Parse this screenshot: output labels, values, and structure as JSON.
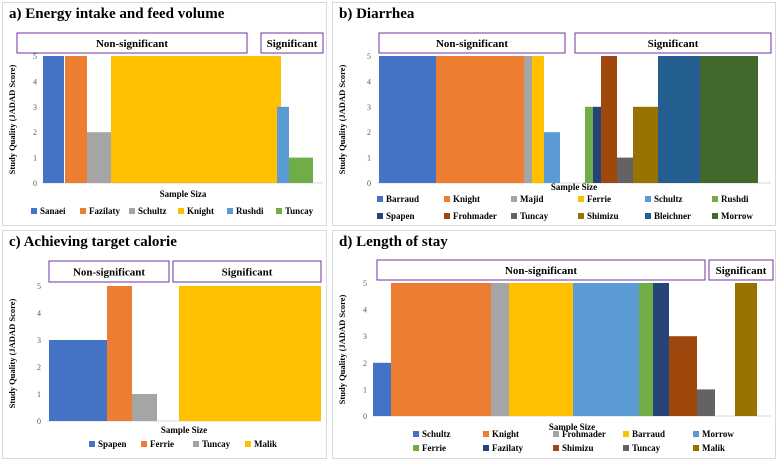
{
  "chart_data": [
    {
      "id": "a",
      "type": "bar",
      "title": "a) Energy intake and feed volume",
      "xlabel": "Sample Siza",
      "ylabel": "Study Quality (JADAD Score)",
      "ylim": [
        0,
        5
      ],
      "yticks": [
        0,
        1,
        2,
        3,
        4,
        5
      ],
      "groups": [
        {
          "label": "Non-significant",
          "series": [
            "Sanaei",
            "Fazilaty",
            "Schultz",
            "Knight"
          ]
        },
        {
          "label": "Significant",
          "series": [
            "Rushdi",
            "Tuncay"
          ]
        }
      ],
      "series": [
        {
          "name": "Sanaei",
          "value": 5,
          "color": "#4472C4"
        },
        {
          "name": "Fazilaty",
          "value": 5,
          "color": "#ED7D31"
        },
        {
          "name": "Schultz",
          "value": 2,
          "color": "#A5A5A5"
        },
        {
          "name": "Knight",
          "value": 5,
          "color": "#FFC000"
        },
        {
          "name": "Rushdi",
          "value": 3,
          "color": "#5B9BD5"
        },
        {
          "name": "Tuncay",
          "value": 1,
          "color": "#70AD47"
        }
      ]
    },
    {
      "id": "b",
      "type": "bar",
      "title": "b) Diarrhea",
      "xlabel": "Sample Size",
      "ylabel": "Study Quality (JADAD Score)",
      "ylim": [
        0,
        5
      ],
      "yticks": [
        0,
        1,
        2,
        3,
        4,
        5
      ],
      "groups": [
        {
          "label": "Non-significant",
          "series": [
            "Barraud",
            "Knight",
            "Majid",
            "Ferrie",
            "Schultz"
          ]
        },
        {
          "label": "Significant",
          "series": [
            "Rushdi",
            "Spapen",
            "Frohmader",
            "Tuncay",
            "Shimizu",
            "Bleichner",
            "Morrow"
          ]
        }
      ],
      "series": [
        {
          "name": "Barraud",
          "value": 5,
          "color": "#4472C4"
        },
        {
          "name": "Knight",
          "value": 5,
          "color": "#ED7D31"
        },
        {
          "name": "Majid",
          "value": 5,
          "color": "#A5A5A5"
        },
        {
          "name": "Ferrie",
          "value": 5,
          "color": "#FFC000"
        },
        {
          "name": "Schultz",
          "value": 2,
          "color": "#5B9BD5"
        },
        {
          "name": "Rushdi",
          "value": 3,
          "color": "#70AD47"
        },
        {
          "name": "Spapen",
          "value": 3,
          "color": "#264478"
        },
        {
          "name": "Frohmader",
          "value": 5,
          "color": "#9E480E"
        },
        {
          "name": "Tuncay",
          "value": 1,
          "color": "#636363"
        },
        {
          "name": "Shimizu",
          "value": 3,
          "color": "#997300"
        },
        {
          "name": "Bleichner",
          "value": 5,
          "color": "#255E91"
        },
        {
          "name": "Morrow",
          "value": 5,
          "color": "#43682B"
        }
      ]
    },
    {
      "id": "c",
      "type": "bar",
      "title": "c) Achieving target calorie",
      "xlabel": "Sample Size",
      "ylabel": "Study Quality (JADAD Score)",
      "ylim": [
        0,
        5
      ],
      "yticks": [
        0,
        1,
        2,
        3,
        4,
        5
      ],
      "groups": [
        {
          "label": "Non-significant",
          "series": [
            "Spapen",
            "Ferrie",
            "Tuncay"
          ]
        },
        {
          "label": "Significant",
          "series": [
            "Malik"
          ]
        }
      ],
      "series": [
        {
          "name": "Spapen",
          "value": 3,
          "color": "#4472C4"
        },
        {
          "name": "Ferrie",
          "value": 5,
          "color": "#ED7D31"
        },
        {
          "name": "Tuncay",
          "value": 1,
          "color": "#A5A5A5"
        },
        {
          "name": "Malik",
          "value": 5,
          "color": "#FFC000"
        }
      ]
    },
    {
      "id": "d",
      "type": "bar",
      "title": "d) Length of stay",
      "xlabel": "Sample Size",
      "ylabel": "Study Quality (JADAD Score)",
      "ylim": [
        0,
        5
      ],
      "yticks": [
        0,
        1,
        2,
        3,
        4,
        5
      ],
      "groups": [
        {
          "label": "Non-significant",
          "series": [
            "Schultz",
            "Knight",
            "Frohmader",
            "Barraud",
            "Morrow",
            "Ferrie",
            "Fazilaty",
            "Shimizu",
            "Tuncay"
          ]
        },
        {
          "label": "Significant",
          "series": [
            "Malik"
          ]
        }
      ],
      "series": [
        {
          "name": "Schultz",
          "value": 2,
          "color": "#4472C4"
        },
        {
          "name": "Knight",
          "value": 5,
          "color": "#ED7D31"
        },
        {
          "name": "Frohmader",
          "value": 5,
          "color": "#A5A5A5"
        },
        {
          "name": "Barraud",
          "value": 5,
          "color": "#FFC000"
        },
        {
          "name": "Morrow",
          "value": 5,
          "color": "#5B9BD5"
        },
        {
          "name": "Ferrie",
          "value": 5,
          "color": "#70AD47"
        },
        {
          "name": "Fazilaty",
          "value": 5,
          "color": "#264478"
        },
        {
          "name": "Shimizu",
          "value": 3,
          "color": "#9E480E"
        },
        {
          "name": "Tuncay",
          "value": 1,
          "color": "#636363"
        },
        {
          "name": "Malik",
          "value": 5,
          "color": "#997300"
        }
      ]
    }
  ]
}
